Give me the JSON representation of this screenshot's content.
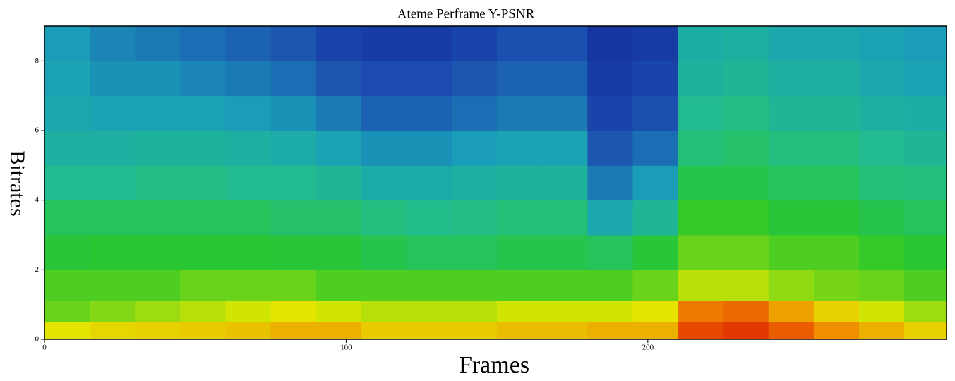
{
  "chart_data": {
    "type": "heatmap",
    "title": "Ateme Perframe Y-PSNR",
    "x_label": "Frames",
    "y_label": "Bitrates",
    "x": [
      7.5,
      22.5,
      37.5,
      52.5,
      67.5,
      82.5,
      97.5,
      112.5,
      127.5,
      142.5,
      157.5,
      172.5,
      187.5,
      202.5,
      217.5,
      232.5,
      247.5,
      262.5,
      277.5,
      292.5
    ],
    "y": [
      0.25,
      0.75,
      1.5,
      2.5,
      3.5,
      4.5,
      5.5,
      6.5,
      7.5,
      8.5
    ],
    "z": [
      [
        0.72,
        0.74,
        0.75,
        0.76,
        0.77,
        0.8,
        0.8,
        0.76,
        0.76,
        0.76,
        0.78,
        0.78,
        0.8,
        0.8,
        0.95,
        0.97,
        0.92,
        0.85,
        0.8,
        0.75
      ],
      [
        0.62,
        0.64,
        0.66,
        0.68,
        0.7,
        0.72,
        0.7,
        0.68,
        0.68,
        0.68,
        0.7,
        0.7,
        0.7,
        0.72,
        0.88,
        0.9,
        0.82,
        0.75,
        0.7,
        0.66
      ],
      [
        0.6,
        0.6,
        0.6,
        0.62,
        0.62,
        0.62,
        0.6,
        0.6,
        0.6,
        0.6,
        0.6,
        0.6,
        0.6,
        0.62,
        0.68,
        0.68,
        0.65,
        0.63,
        0.62,
        0.6
      ],
      [
        0.55,
        0.56,
        0.56,
        0.56,
        0.56,
        0.55,
        0.55,
        0.52,
        0.5,
        0.5,
        0.52,
        0.52,
        0.5,
        0.55,
        0.62,
        0.62,
        0.6,
        0.6,
        0.58,
        0.56
      ],
      [
        0.5,
        0.5,
        0.5,
        0.5,
        0.5,
        0.48,
        0.48,
        0.45,
        0.43,
        0.44,
        0.46,
        0.46,
        0.32,
        0.4,
        0.58,
        0.58,
        0.55,
        0.55,
        0.52,
        0.5
      ],
      [
        0.42,
        0.42,
        0.44,
        0.44,
        0.42,
        0.42,
        0.4,
        0.34,
        0.34,
        0.36,
        0.38,
        0.38,
        0.22,
        0.28,
        0.52,
        0.52,
        0.5,
        0.5,
        0.46,
        0.45
      ],
      [
        0.36,
        0.36,
        0.38,
        0.38,
        0.36,
        0.34,
        0.3,
        0.26,
        0.26,
        0.28,
        0.3,
        0.3,
        0.16,
        0.2,
        0.46,
        0.48,
        0.45,
        0.45,
        0.42,
        0.4
      ],
      [
        0.32,
        0.3,
        0.3,
        0.3,
        0.28,
        0.26,
        0.22,
        0.18,
        0.18,
        0.2,
        0.22,
        0.22,
        0.12,
        0.15,
        0.42,
        0.44,
        0.4,
        0.4,
        0.36,
        0.35
      ],
      [
        0.3,
        0.26,
        0.26,
        0.24,
        0.22,
        0.2,
        0.16,
        0.14,
        0.14,
        0.16,
        0.18,
        0.18,
        0.1,
        0.12,
        0.38,
        0.4,
        0.36,
        0.36,
        0.32,
        0.3
      ],
      [
        0.28,
        0.24,
        0.22,
        0.2,
        0.18,
        0.16,
        0.12,
        0.1,
        0.1,
        0.12,
        0.15,
        0.15,
        0.08,
        0.1,
        0.35,
        0.36,
        0.32,
        0.32,
        0.3,
        0.28
      ]
    ],
    "zlim": [
      0,
      1
    ],
    "colorscale": [
      "#0a1a88",
      "#1c4cb0",
      "#1aa0b8",
      "#22bc8c",
      "#2ac82a",
      "#e4e800",
      "#f08a00",
      "#e02400"
    ],
    "xlim": [
      0,
      299
    ],
    "ylim": [
      0,
      9
    ],
    "xticks": [
      0,
      100,
      200
    ],
    "yticks": [
      0,
      2,
      4,
      6,
      8
    ]
  }
}
